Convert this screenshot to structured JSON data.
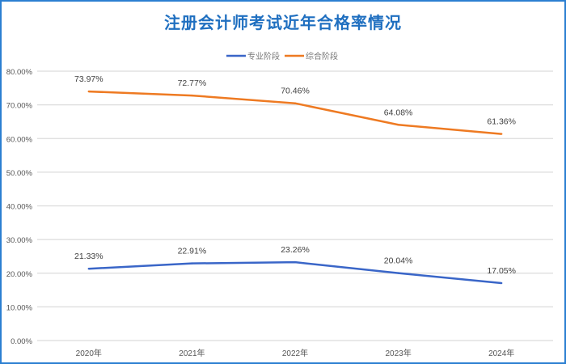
{
  "chart_data": {
    "type": "line",
    "title": "注册会计师考试近年合格率情况",
    "categories": [
      "2020年",
      "2021年",
      "2022年",
      "2023年",
      "2024年"
    ],
    "ylim": [
      0,
      80
    ],
    "yticks": [
      "0.00%",
      "10.00%",
      "20.00%",
      "30.00%",
      "40.00%",
      "50.00%",
      "60.00%",
      "70.00%",
      "80.00%"
    ],
    "grid": true,
    "legend_position": "top-center",
    "series": [
      {
        "name": "专业阶段",
        "color": "#3a66c8",
        "values": [
          21.33,
          22.91,
          23.26,
          20.04,
          17.05
        ],
        "labels": [
          "21.33%",
          "22.91%",
          "23.26%",
          "20.04%",
          "17.05%"
        ]
      },
      {
        "name": "综合阶段",
        "color": "#ee7a22",
        "values": [
          73.97,
          72.77,
          70.46,
          64.08,
          61.36
        ],
        "labels": [
          "73.97%",
          "72.77%",
          "70.46%",
          "64.08%",
          "61.36%"
        ]
      }
    ]
  }
}
